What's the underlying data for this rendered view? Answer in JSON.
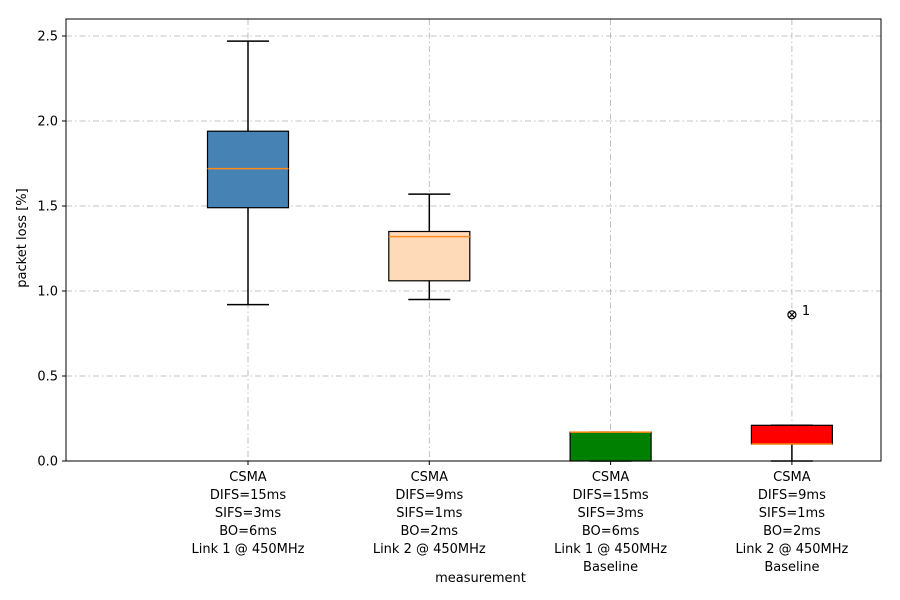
{
  "chart_data": {
    "type": "box",
    "xlabel": "measurement",
    "ylabel": "packet loss [%]",
    "ylim": [
      0,
      2.6
    ],
    "yticks": [
      "0.0",
      "0.5",
      "1.0",
      "1.5",
      "2.0",
      "2.5"
    ],
    "grid": true,
    "categories": [
      {
        "label_lines": [
          "CSMA",
          "DIFS=15ms",
          "SIFS=3ms",
          "BO=6ms",
          "Link 1 @ 450MHz"
        ],
        "color": "#4682b4",
        "whisker_low": 0.92,
        "q1": 1.49,
        "median": 1.72,
        "q3": 1.94,
        "whisker_high": 2.47,
        "outliers": []
      },
      {
        "label_lines": [
          "CSMA",
          "DIFS=9ms",
          "SIFS=1ms",
          "BO=2ms",
          "Link 2 @ 450MHz"
        ],
        "color": "#ffdab9",
        "whisker_low": 0.95,
        "q1": 1.06,
        "median": 1.32,
        "q3": 1.35,
        "whisker_high": 1.57,
        "outliers": []
      },
      {
        "label_lines": [
          "CSMA",
          "DIFS=15ms",
          "SIFS=3ms",
          "BO=6ms",
          "Link 1 @ 450MHz",
          "Baseline"
        ],
        "color": "#008000",
        "whisker_low": 0.0,
        "q1": 0.0,
        "median": 0.17,
        "q3": 0.17,
        "whisker_high": 0.17,
        "outliers": []
      },
      {
        "label_lines": [
          "CSMA",
          "DIFS=9ms",
          "SIFS=1ms",
          "BO=2ms",
          "Link 2 @ 450MHz",
          "Baseline"
        ],
        "color": "#ff0000",
        "whisker_low": 0.0,
        "q1": 0.1,
        "median": 0.1,
        "q3": 0.21,
        "whisker_high": 0.21,
        "outliers": [
          {
            "value": 0.86,
            "label": "1"
          }
        ]
      }
    ]
  }
}
